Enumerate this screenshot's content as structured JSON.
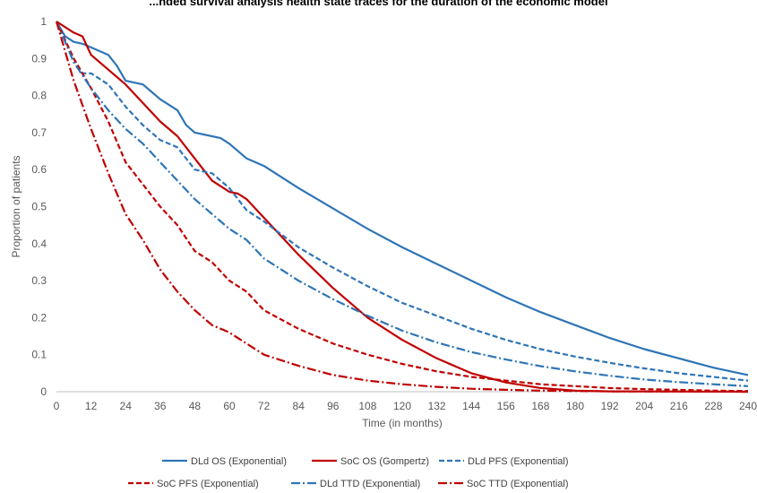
{
  "chart_data": {
    "type": "line",
    "title": "...nded survival analysis health state traces for the duration of the economic model",
    "xlabel": "Time (in months)",
    "ylabel": "Proportion of patients",
    "xlim": [
      0,
      240
    ],
    "ylim": [
      0,
      1
    ],
    "x_ticks": [
      "0",
      "12",
      "24",
      "36",
      "48",
      "60",
      "72",
      "84",
      "96",
      "108",
      "120",
      "132",
      "144",
      "156",
      "168",
      "180",
      "192",
      "204",
      "216",
      "228",
      "240"
    ],
    "y_ticks": [
      "0",
      "0.1",
      "0.2",
      "0.3",
      "0.4",
      "0.5",
      "0.6",
      "0.7",
      "0.8",
      "0.9",
      "1"
    ],
    "grid": false,
    "legend_position": "bottom",
    "series": [
      {
        "name": "DLd OS (Exponential)",
        "color": "#2e75b6",
        "dash": "solid",
        "points": [
          [
            0,
            1
          ],
          [
            3,
            0.96
          ],
          [
            6,
            0.945
          ],
          [
            9,
            0.94
          ],
          [
            12,
            0.93
          ],
          [
            18,
            0.91
          ],
          [
            21,
            0.88
          ],
          [
            24,
            0.84
          ],
          [
            30,
            0.83
          ],
          [
            33,
            0.81
          ],
          [
            36,
            0.79
          ],
          [
            42,
            0.76
          ],
          [
            45,
            0.72
          ],
          [
            48,
            0.7
          ],
          [
            54,
            0.69
          ],
          [
            57,
            0.685
          ],
          [
            60,
            0.67
          ],
          [
            66,
            0.63
          ],
          [
            72,
            0.61
          ],
          [
            84,
            0.55
          ],
          [
            96,
            0.495
          ],
          [
            108,
            0.44
          ],
          [
            120,
            0.39
          ],
          [
            132,
            0.345
          ],
          [
            144,
            0.3
          ],
          [
            156,
            0.255
          ],
          [
            168,
            0.215
          ],
          [
            180,
            0.18
          ],
          [
            192,
            0.145
          ],
          [
            204,
            0.115
          ],
          [
            216,
            0.09
          ],
          [
            228,
            0.065
          ],
          [
            240,
            0.045
          ]
        ]
      },
      {
        "name": "SoC OS (Gompertz)",
        "color": "#c00000",
        "dash": "solid",
        "points": [
          [
            0,
            1
          ],
          [
            6,
            0.97
          ],
          [
            9,
            0.96
          ],
          [
            12,
            0.91
          ],
          [
            18,
            0.87
          ],
          [
            24,
            0.83
          ],
          [
            30,
            0.78
          ],
          [
            36,
            0.73
          ],
          [
            42,
            0.69
          ],
          [
            48,
            0.63
          ],
          [
            54,
            0.57
          ],
          [
            60,
            0.54
          ],
          [
            63,
            0.535
          ],
          [
            66,
            0.52
          ],
          [
            72,
            0.47
          ],
          [
            78,
            0.42
          ],
          [
            84,
            0.37
          ],
          [
            96,
            0.28
          ],
          [
            108,
            0.2
          ],
          [
            120,
            0.14
          ],
          [
            132,
            0.09
          ],
          [
            144,
            0.05
          ],
          [
            156,
            0.025
          ],
          [
            168,
            0.01
          ],
          [
            180,
            0.003
          ],
          [
            192,
            0.001
          ],
          [
            240,
            0.0
          ]
        ]
      },
      {
        "name": "DLd PFS (Exponential)",
        "color": "#2e75b6",
        "dash": "6,3",
        "points": [
          [
            0,
            1
          ],
          [
            6,
            0.9
          ],
          [
            9,
            0.86
          ],
          [
            12,
            0.86
          ],
          [
            18,
            0.83
          ],
          [
            24,
            0.77
          ],
          [
            30,
            0.72
          ],
          [
            36,
            0.68
          ],
          [
            42,
            0.66
          ],
          [
            48,
            0.6
          ],
          [
            54,
            0.59
          ],
          [
            60,
            0.55
          ],
          [
            66,
            0.49
          ],
          [
            72,
            0.46
          ],
          [
            84,
            0.39
          ],
          [
            96,
            0.335
          ],
          [
            108,
            0.285
          ],
          [
            120,
            0.24
          ],
          [
            132,
            0.205
          ],
          [
            144,
            0.17
          ],
          [
            156,
            0.14
          ],
          [
            168,
            0.115
          ],
          [
            180,
            0.095
          ],
          [
            192,
            0.078
          ],
          [
            204,
            0.063
          ],
          [
            216,
            0.05
          ],
          [
            228,
            0.04
          ],
          [
            240,
            0.03
          ]
        ]
      },
      {
        "name": "SoC PFS (Exponential)",
        "color": "#c00000",
        "dash": "6,3",
        "points": [
          [
            0,
            1
          ],
          [
            6,
            0.9
          ],
          [
            12,
            0.82
          ],
          [
            18,
            0.73
          ],
          [
            24,
            0.62
          ],
          [
            30,
            0.56
          ],
          [
            36,
            0.5
          ],
          [
            42,
            0.45
          ],
          [
            48,
            0.38
          ],
          [
            54,
            0.35
          ],
          [
            60,
            0.3
          ],
          [
            66,
            0.27
          ],
          [
            72,
            0.22
          ],
          [
            84,
            0.17
          ],
          [
            96,
            0.13
          ],
          [
            108,
            0.1
          ],
          [
            120,
            0.075
          ],
          [
            132,
            0.055
          ],
          [
            144,
            0.04
          ],
          [
            156,
            0.03
          ],
          [
            168,
            0.02
          ],
          [
            180,
            0.015
          ],
          [
            192,
            0.01
          ],
          [
            204,
            0.007
          ],
          [
            216,
            0.005
          ],
          [
            228,
            0.003
          ],
          [
            240,
            0.002
          ]
        ]
      },
      {
        "name": "DLd TTD (Exponential)",
        "color": "#2e75b6",
        "dash": "10,3,2,3",
        "points": [
          [
            0,
            1
          ],
          [
            6,
            0.89
          ],
          [
            12,
            0.82
          ],
          [
            18,
            0.76
          ],
          [
            24,
            0.71
          ],
          [
            30,
            0.67
          ],
          [
            36,
            0.62
          ],
          [
            42,
            0.57
          ],
          [
            48,
            0.52
          ],
          [
            54,
            0.48
          ],
          [
            60,
            0.44
          ],
          [
            66,
            0.41
          ],
          [
            72,
            0.36
          ],
          [
            84,
            0.3
          ],
          [
            96,
            0.25
          ],
          [
            108,
            0.205
          ],
          [
            120,
            0.165
          ],
          [
            132,
            0.133
          ],
          [
            144,
            0.107
          ],
          [
            156,
            0.087
          ],
          [
            168,
            0.069
          ],
          [
            180,
            0.055
          ],
          [
            192,
            0.043
          ],
          [
            204,
            0.033
          ],
          [
            216,
            0.026
          ],
          [
            228,
            0.02
          ],
          [
            240,
            0.015
          ]
        ]
      },
      {
        "name": "SoC TTD (Exponential)",
        "color": "#c00000",
        "dash": "10,3,2,3",
        "points": [
          [
            0,
            1
          ],
          [
            6,
            0.84
          ],
          [
            12,
            0.71
          ],
          [
            18,
            0.59
          ],
          [
            24,
            0.48
          ],
          [
            30,
            0.41
          ],
          [
            36,
            0.33
          ],
          [
            42,
            0.27
          ],
          [
            48,
            0.22
          ],
          [
            54,
            0.18
          ],
          [
            60,
            0.16
          ],
          [
            66,
            0.13
          ],
          [
            72,
            0.1
          ],
          [
            84,
            0.07
          ],
          [
            96,
            0.045
          ],
          [
            108,
            0.03
          ],
          [
            120,
            0.02
          ],
          [
            132,
            0.013
          ],
          [
            144,
            0.008
          ],
          [
            156,
            0.005
          ],
          [
            168,
            0.003
          ],
          [
            180,
            0.002
          ],
          [
            192,
            0.001
          ],
          [
            240,
            0.0
          ]
        ]
      }
    ]
  }
}
